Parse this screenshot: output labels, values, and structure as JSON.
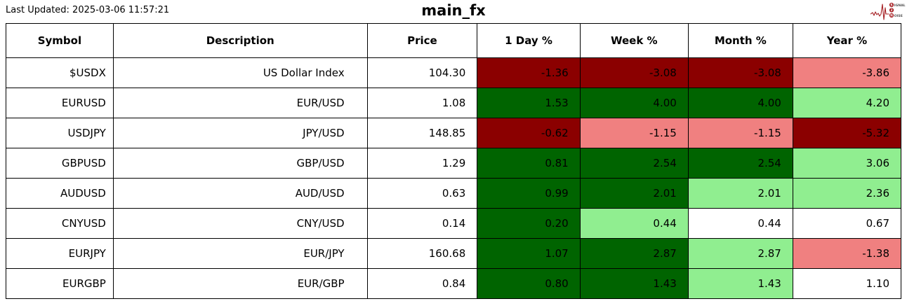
{
  "header": {
    "last_updated": "Last Updated: 2025-03-06 11:57:21",
    "title": "main_fx"
  },
  "logo": {
    "line1_initial": "S",
    "line1_rest": "IGNAL",
    "line2": "2",
    "line3_initial": "N",
    "line3_rest": "OISE",
    "accent_color": "#a62024",
    "text_color": "#555555"
  },
  "colors": {
    "dark_red": "#8b0000",
    "light_red": "#f08080",
    "dark_green": "#006400",
    "light_green": "#90ee90",
    "white": "#ffffff",
    "border": "#000000"
  },
  "chart_data": {
    "type": "table",
    "title": "main_fx",
    "columns": [
      "Symbol",
      "Description",
      "Price",
      "1 Day %",
      "Week %",
      "Month %",
      "Year %"
    ],
    "rows": [
      {
        "symbol": "$USDX",
        "description": "US Dollar Index",
        "price": "104.30",
        "pct": [
          "-1.36",
          "-3.08",
          "-3.08",
          "-3.86"
        ],
        "pct_colors": [
          "dark_red",
          "dark_red",
          "dark_red",
          "light_red"
        ]
      },
      {
        "symbol": "EURUSD",
        "description": "EUR/USD",
        "price": "1.08",
        "pct": [
          "1.53",
          "4.00",
          "4.00",
          "4.20"
        ],
        "pct_colors": [
          "dark_green",
          "dark_green",
          "dark_green",
          "light_green"
        ]
      },
      {
        "symbol": "USDJPY",
        "description": "JPY/USD",
        "price": "148.85",
        "pct": [
          "-0.62",
          "-1.15",
          "-1.15",
          "-5.32"
        ],
        "pct_colors": [
          "dark_red",
          "light_red",
          "light_red",
          "dark_red"
        ]
      },
      {
        "symbol": "GBPUSD",
        "description": "GBP/USD",
        "price": "1.29",
        "pct": [
          "0.81",
          "2.54",
          "2.54",
          "3.06"
        ],
        "pct_colors": [
          "dark_green",
          "dark_green",
          "dark_green",
          "light_green"
        ]
      },
      {
        "symbol": "AUDUSD",
        "description": "AUD/USD",
        "price": "0.63",
        "pct": [
          "0.99",
          "2.01",
          "2.01",
          "2.36"
        ],
        "pct_colors": [
          "dark_green",
          "dark_green",
          "light_green",
          "light_green"
        ]
      },
      {
        "symbol": "CNYUSD",
        "description": "CNY/USD",
        "price": "0.14",
        "pct": [
          "0.20",
          "0.44",
          "0.44",
          "0.67"
        ],
        "pct_colors": [
          "dark_green",
          "light_green",
          "white",
          "white"
        ]
      },
      {
        "symbol": "EURJPY",
        "description": "EUR/JPY",
        "price": "160.68",
        "pct": [
          "1.07",
          "2.87",
          "2.87",
          "-1.38"
        ],
        "pct_colors": [
          "dark_green",
          "dark_green",
          "light_green",
          "light_red"
        ]
      },
      {
        "symbol": "EURGBP",
        "description": "EUR/GBP",
        "price": "0.84",
        "pct": [
          "0.80",
          "1.43",
          "1.43",
          "1.10"
        ],
        "pct_colors": [
          "dark_green",
          "dark_green",
          "light_green",
          "white"
        ]
      }
    ]
  }
}
